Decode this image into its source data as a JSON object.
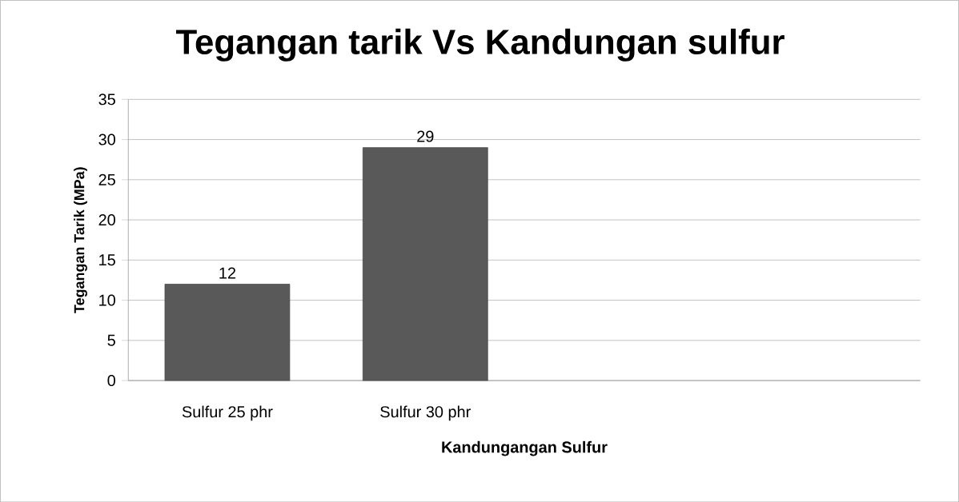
{
  "chart_data": {
    "type": "bar",
    "title": "Tegangan tarik Vs Kandungan sulfur",
    "xlabel": "Kandungangan Sulfur",
    "ylabel": "Tegangan Tarik (MPa)",
    "categories": [
      "Sulfur 25 phr",
      "Sulfur 30 phr",
      null,
      null
    ],
    "values": [
      12,
      29,
      null,
      null
    ],
    "color": "#595959",
    "ylim": [
      0,
      35
    ],
    "yticks": [
      0,
      5,
      10,
      15,
      20,
      25,
      30,
      35
    ],
    "grid": "y",
    "data_labels": true
  }
}
